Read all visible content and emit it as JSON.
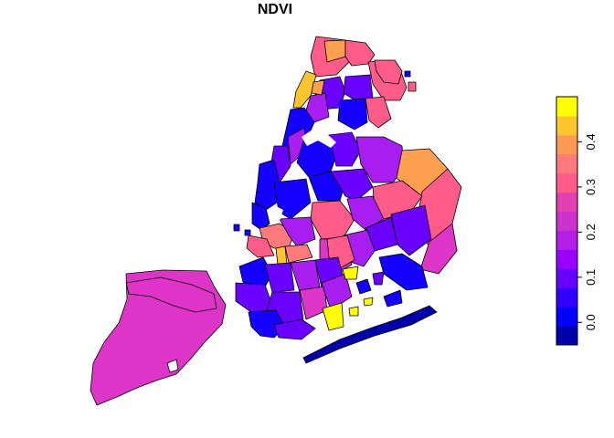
{
  "title": "NDVI",
  "legend": {
    "ticks": [
      "0.0",
      "0.1",
      "0.2",
      "0.3",
      "0.4"
    ],
    "tick_values": [
      0.0,
      0.1,
      0.2,
      0.3,
      0.4
    ],
    "range": [
      -0.05,
      0.5
    ],
    "colors": [
      "#0000AA",
      "#0000FF",
      "#3300FF",
      "#6600FF",
      "#9900FF",
      "#B41EE6",
      "#CC33CC",
      "#E040B0",
      "#FF5C8A",
      "#FF7A7A",
      "#FF9A55",
      "#FFC52E",
      "#FFFF00"
    ]
  },
  "fill_colors": {
    "darkblue": "#0000AA",
    "blue": "#1400FF",
    "violet": "#6A00FF",
    "purple": "#A81EF0",
    "magenta": "#DD35C8",
    "pink": "#FF5C8A",
    "salmon": "#FF7A7A",
    "orange": "#FFA050",
    "gold": "#FFC52E",
    "yellow": "#FFFF00"
  }
}
